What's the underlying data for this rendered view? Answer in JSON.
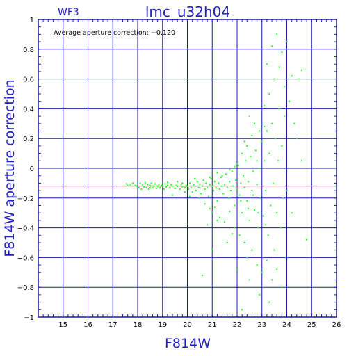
{
  "chart_data": {
    "type": "scatter",
    "title": "lmc_u32h04",
    "chip_label": "WF3",
    "annotation": "Average aperture correction: −0.120",
    "xlabel": "F814W",
    "ylabel": "F814W aperture correction",
    "xlim": [
      14,
      26
    ],
    "ylim": [
      -1,
      1
    ],
    "x_ticks": [
      "15",
      "16",
      "17",
      "18",
      "19",
      "20",
      "21",
      "22",
      "23",
      "24",
      "25",
      "26"
    ],
    "y_ticks": [
      "−1",
      "−0.8",
      "−0.6",
      "−0.4",
      "−0.2",
      "0",
      "0.2",
      "0.4",
      "0.6",
      "0.8",
      "1"
    ],
    "grid": true,
    "average_line": -0.12,
    "colors": {
      "points": "#22ff22",
      "average_line": "#e01010",
      "grid": "#1a1aaa",
      "text": "#1f1fc8"
    },
    "points": [
      [
        17.55,
        -0.105
      ],
      [
        17.7,
        -0.11
      ],
      [
        17.8,
        -0.1
      ],
      [
        17.9,
        -0.115
      ],
      [
        17.95,
        -0.12
      ],
      [
        18.05,
        -0.13
      ],
      [
        18.1,
        -0.1
      ],
      [
        18.15,
        -0.14
      ],
      [
        18.2,
        -0.11
      ],
      [
        18.25,
        -0.125
      ],
      [
        18.3,
        -0.1
      ],
      [
        18.35,
        -0.13
      ],
      [
        18.4,
        -0.11
      ],
      [
        18.45,
        -0.14
      ],
      [
        18.5,
        -0.115
      ],
      [
        18.55,
        -0.1
      ],
      [
        18.6,
        -0.13
      ],
      [
        18.65,
        -0.12
      ],
      [
        18.7,
        -0.105
      ],
      [
        18.75,
        -0.135
      ],
      [
        18.8,
        -0.12
      ],
      [
        18.85,
        -0.11
      ],
      [
        18.9,
        -0.13
      ],
      [
        18.95,
        -0.115
      ],
      [
        19.0,
        -0.12
      ],
      [
        19.05,
        -0.14
      ],
      [
        19.1,
        -0.105
      ],
      [
        19.15,
        -0.125
      ],
      [
        19.2,
        -0.115
      ],
      [
        19.3,
        -0.13
      ],
      [
        19.35,
        -0.11
      ],
      [
        19.4,
        -0.12
      ],
      [
        19.5,
        -0.135
      ],
      [
        19.55,
        -0.115
      ],
      [
        19.6,
        -0.12
      ],
      [
        19.7,
        -0.14
      ],
      [
        19.75,
        -0.11
      ],
      [
        19.8,
        -0.125
      ],
      [
        19.9,
        -0.13
      ],
      [
        19.95,
        -0.115
      ],
      [
        20.0,
        -0.12
      ],
      [
        20.05,
        -0.14
      ],
      [
        20.1,
        -0.1
      ],
      [
        20.15,
        -0.13
      ],
      [
        20.2,
        -0.16
      ],
      [
        20.25,
        -0.11
      ],
      [
        20.3,
        -0.12
      ],
      [
        20.35,
        -0.15
      ],
      [
        20.4,
        -0.09
      ],
      [
        20.45,
        -0.13
      ],
      [
        20.5,
        -0.11
      ],
      [
        20.55,
        -0.17
      ],
      [
        20.6,
        -0.12
      ],
      [
        20.65,
        -0.08
      ],
      [
        20.7,
        -0.14
      ],
      [
        20.75,
        -0.1
      ],
      [
        20.8,
        -0.13
      ],
      [
        20.85,
        -0.19
      ],
      [
        20.9,
        -0.11
      ],
      [
        20.95,
        -0.07
      ],
      [
        21.0,
        -0.12
      ],
      [
        21.05,
        -0.15
      ],
      [
        21.1,
        -0.09
      ],
      [
        21.15,
        -0.13
      ],
      [
        21.2,
        -0.22
      ],
      [
        21.25,
        -0.1
      ],
      [
        21.3,
        -0.14
      ],
      [
        21.35,
        -0.06
      ],
      [
        21.4,
        -0.12
      ],
      [
        21.45,
        -0.17
      ],
      [
        21.5,
        -0.11
      ],
      [
        21.55,
        -0.04
      ],
      [
        21.6,
        -0.13
      ],
      [
        21.65,
        -0.2
      ],
      [
        21.7,
        -0.09
      ],
      [
        21.75,
        -0.15
      ],
      [
        21.8,
        -0.02
      ],
      [
        21.85,
        -0.12
      ],
      [
        21.9,
        -0.25
      ],
      [
        21.95,
        -0.08
      ],
      [
        22.0,
        -0.14
      ],
      [
        22.05,
        0.02
      ],
      [
        22.1,
        -0.18
      ],
      [
        22.15,
        -0.1
      ],
      [
        22.2,
        -0.3
      ],
      [
        22.25,
        -0.05
      ],
      [
        22.3,
        -0.13
      ],
      [
        22.35,
        0.05
      ],
      [
        22.4,
        -0.22
      ],
      [
        22.45,
        -0.09
      ],
      [
        22.5,
        -0.35
      ],
      [
        22.55,
        0.08
      ],
      [
        22.6,
        -0.15
      ],
      [
        22.65,
        -0.02
      ],
      [
        22.7,
        -0.28
      ],
      [
        22.75,
        0.12
      ],
      [
        22.8,
        -0.11
      ],
      [
        22.85,
        -0.4
      ],
      [
        22.9,
        0.0
      ],
      [
        22.95,
        -0.2
      ],
      [
        23.0,
        0.18
      ],
      [
        23.05,
        -0.32
      ],
      [
        23.1,
        0.05
      ],
      [
        23.15,
        -0.15
      ],
      [
        23.2,
        0.25
      ],
      [
        23.25,
        -0.45
      ],
      [
        23.3,
        0.1
      ],
      [
        23.35,
        -0.25
      ],
      [
        23.4,
        0.3
      ],
      [
        23.45,
        -0.1
      ],
      [
        23.5,
        -0.55
      ],
      [
        23.55,
        0.2
      ],
      [
        23.6,
        -0.3
      ],
      [
        23.65,
        0.05
      ],
      [
        23.7,
        0.4
      ],
      [
        23.75,
        -0.4
      ],
      [
        23.8,
        0.15
      ],
      [
        23.85,
        -0.2
      ],
      [
        23.9,
        0.55
      ],
      [
        23.95,
        -0.6
      ],
      [
        20.5,
        -0.2
      ],
      [
        20.7,
        -0.24
      ],
      [
        20.9,
        -0.27
      ],
      [
        21.0,
        -0.3
      ],
      [
        21.1,
        -0.26
      ],
      [
        21.3,
        -0.33
      ],
      [
        21.5,
        -0.36
      ],
      [
        21.7,
        -0.29
      ],
      [
        21.9,
        -0.4
      ],
      [
        22.1,
        -0.45
      ],
      [
        22.3,
        -0.5
      ],
      [
        22.4,
        -0.6
      ],
      [
        22.6,
        -0.55
      ],
      [
        22.8,
        -0.65
      ],
      [
        23.0,
        -0.7
      ],
      [
        23.2,
        -0.62
      ],
      [
        23.4,
        -0.75
      ],
      [
        23.6,
        -0.68
      ],
      [
        23.8,
        -0.8
      ],
      [
        21.2,
        -0.35
      ],
      [
        22.9,
        -0.85
      ],
      [
        22.2,
        -0.95
      ],
      [
        23.3,
        -0.9
      ],
      [
        21.0,
        -0.55
      ],
      [
        20.6,
        -0.72
      ],
      [
        21.6,
        -0.5
      ],
      [
        22.0,
        -0.68
      ],
      [
        21.8,
        -0.44
      ],
      [
        20.8,
        -0.38
      ],
      [
        22.5,
        -0.75
      ],
      [
        23.1,
        0.42
      ],
      [
        23.3,
        0.5
      ],
      [
        23.5,
        0.6
      ],
      [
        23.2,
        0.7
      ],
      [
        23.4,
        0.82
      ],
      [
        23.6,
        0.9
      ],
      [
        23.8,
        0.78
      ],
      [
        24.0,
        0.85
      ],
      [
        23.7,
        0.68
      ],
      [
        24.2,
        0.62
      ],
      [
        24.5,
        0.6
      ],
      [
        24.6,
        0.66
      ],
      [
        24.4,
        0.2
      ],
      [
        24.3,
        0.3
      ],
      [
        24.1,
        0.45
      ],
      [
        23.9,
        0.35
      ],
      [
        24.6,
        0.05
      ],
      [
        24.8,
        -0.48
      ],
      [
        24.2,
        -0.3
      ],
      [
        24.0,
        -0.15
      ],
      [
        22.6,
        0.22
      ],
      [
        22.4,
        0.15
      ],
      [
        22.2,
        0.1
      ],
      [
        22.7,
        0.3
      ],
      [
        22.5,
        0.35
      ],
      [
        22.9,
        0.25
      ],
      [
        23.1,
        0.28
      ],
      [
        22.3,
        0.18
      ],
      [
        22.8,
        0.05
      ],
      [
        22.0,
        0.03
      ],
      [
        21.7,
        -0.01
      ],
      [
        21.4,
        -0.05
      ],
      [
        21.2,
        -0.03
      ],
      [
        20.9,
        -0.06
      ],
      [
        21.9,
        0.01
      ],
      [
        22.15,
        -0.22
      ],
      [
        22.45,
        -0.27
      ],
      [
        22.65,
        -0.18
      ],
      [
        22.85,
        -0.3
      ],
      [
        23.15,
        -0.38
      ],
      [
        19.4,
        -0.18
      ],
      [
        19.9,
        -0.16
      ],
      [
        20.1,
        -0.19
      ],
      [
        20.3,
        -0.07
      ],
      [
        19.6,
        -0.09
      ],
      [
        18.5,
        -0.13
      ],
      [
        18.3,
        -0.095
      ],
      [
        17.6,
        -0.115
      ],
      [
        19.2,
        -0.095
      ],
      [
        19.8,
        -0.1
      ]
    ]
  }
}
